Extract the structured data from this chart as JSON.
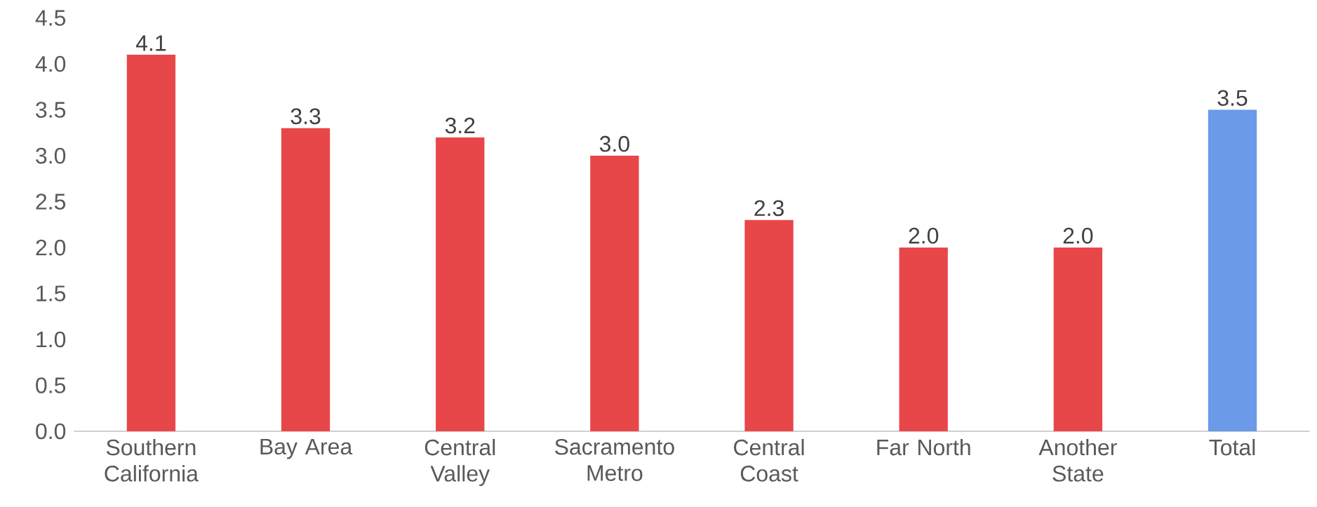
{
  "chart_data": {
    "type": "bar",
    "categories": [
      "Southern California",
      "Bay Area",
      "Central Valley",
      "Sacramento Metro",
      "Central Coast",
      "Far North",
      "Another State",
      "Total"
    ],
    "values": [
      4.1,
      3.3,
      3.2,
      3.0,
      2.3,
      2.0,
      2.0,
      3.5
    ],
    "value_labels": [
      "4.1",
      "3.3",
      "3.2",
      "3.0",
      "2.3",
      "2.0",
      "2.0",
      "3.5"
    ],
    "colors": [
      "#e8474a",
      "#e8474a",
      "#e8474a",
      "#e8474a",
      "#e8474a",
      "#e8474a",
      "#e8474a",
      "#6a9ae8"
    ],
    "ylim": [
      0,
      4.5
    ],
    "yticks": [
      {
        "value": 0,
        "label": "0.0"
      },
      {
        "value": 0.5,
        "label": "0.5"
      },
      {
        "value": 1,
        "label": "1.0"
      },
      {
        "value": 1.5,
        "label": "1.5"
      },
      {
        "value": 2,
        "label": "2.0"
      },
      {
        "value": 2.5,
        "label": "2.5"
      },
      {
        "value": 3,
        "label": "3.0"
      },
      {
        "value": 3.5,
        "label": "3.5"
      },
      {
        "value": 4,
        "label": "4.0"
      },
      {
        "value": 4.5,
        "label": "4.5"
      }
    ],
    "grid": false
  }
}
